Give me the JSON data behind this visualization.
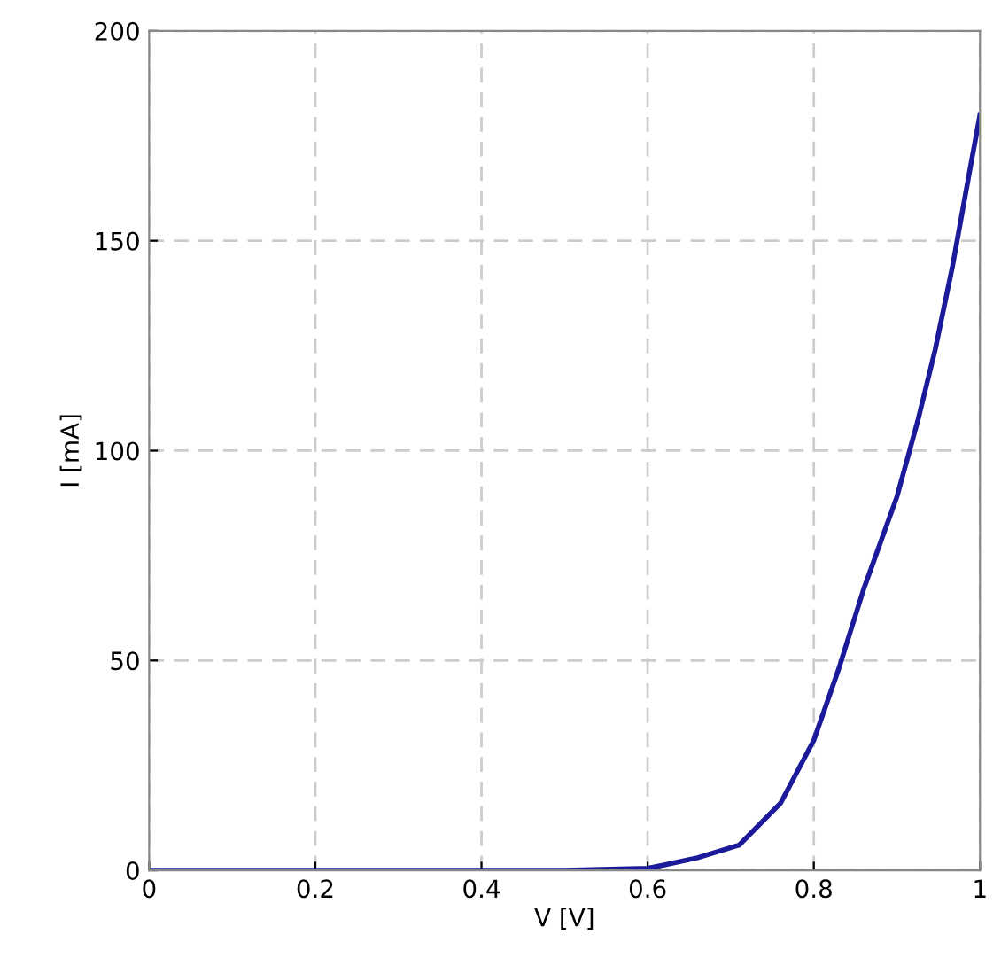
{
  "chart_data": {
    "type": "line",
    "xlabel": "V [V]",
    "ylabel": "I [mA]",
    "x": [
      0,
      0.2,
      0.4,
      0.5,
      0.6,
      0.62,
      0.66,
      0.71,
      0.76,
      0.8,
      0.83,
      0.86,
      0.9,
      0.925,
      0.946,
      0.967,
      0.987,
      1.0
    ],
    "series": [
      {
        "color": "#1a1a9a",
        "values": [
          0,
          0,
          0,
          0,
          0.5,
          1.3,
          3,
          6,
          16,
          31,
          48,
          67,
          89,
          107,
          124,
          144,
          166,
          180
        ]
      }
    ],
    "xlim": [
      0,
      1
    ],
    "xticks": [
      0,
      0.2,
      0.4,
      0.6,
      0.8,
      1
    ],
    "ylim": [
      0,
      200
    ],
    "yticks": [
      0,
      50,
      100,
      150,
      200
    ],
    "grid": true,
    "line_style": "solid",
    "marker": "none"
  }
}
